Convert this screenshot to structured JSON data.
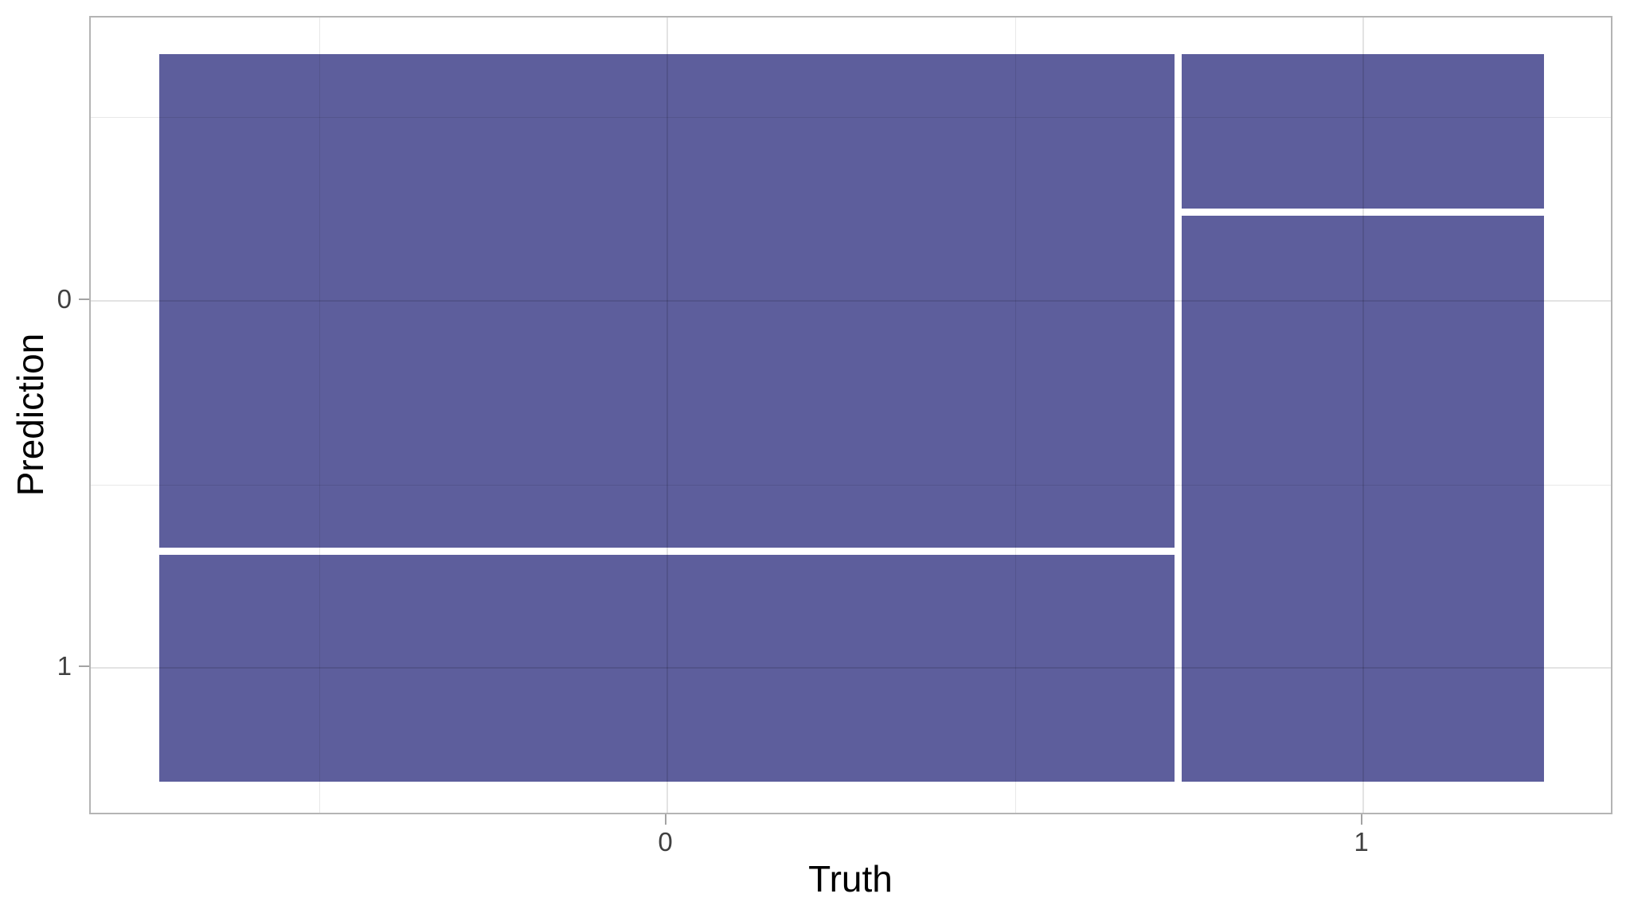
{
  "chart_data": {
    "type": "mosaic",
    "title": "",
    "xlabel": "Truth",
    "ylabel": "Prediction",
    "x_categories": [
      "0",
      "1"
    ],
    "y_categories": [
      "0",
      "1"
    ],
    "fill_color": "#5D5E9C",
    "legend": "none",
    "grid": "major and minor gridlines, drawn over tiles",
    "columns": [
      {
        "truth": "0",
        "width_frac": 0.737,
        "segments": [
          {
            "prediction": "0",
            "height_frac": 0.685
          },
          {
            "prediction": "1",
            "height_frac": 0.315
          }
        ]
      },
      {
        "truth": "1",
        "width_frac": 0.263,
        "segments": [
          {
            "prediction": "0",
            "height_frac": 0.214
          },
          {
            "prediction": "1",
            "height_frac": 0.786
          }
        ]
      }
    ]
  }
}
